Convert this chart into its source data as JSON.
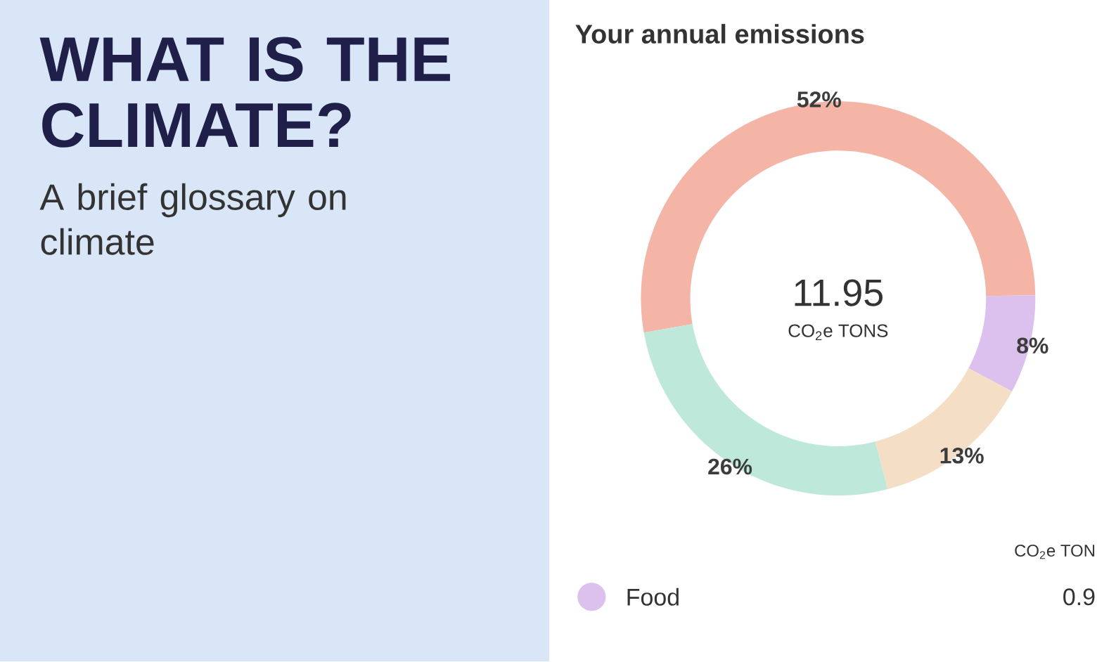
{
  "chart_data": {
    "type": "donut",
    "title": "Your annual emissions",
    "categories": [
      null,
      "Food",
      null,
      null
    ],
    "values": [
      52,
      8,
      13,
      26
    ],
    "colors": [
      "#f4b5a7",
      "#dcc1ef",
      "#f4dfc6",
      "#bee9da"
    ],
    "value_labels": [
      "52%",
      "8%",
      "13%",
      "26%"
    ],
    "legend": "bottom",
    "annotations": [
      "11.95",
      "CO$_{2}$e TONS",
      "CO$_{2}$e TON",
      "0.9",
      "WHAT IS THE CLIMATE?",
      "A brief glossary on climate"
    ]
  }
}
